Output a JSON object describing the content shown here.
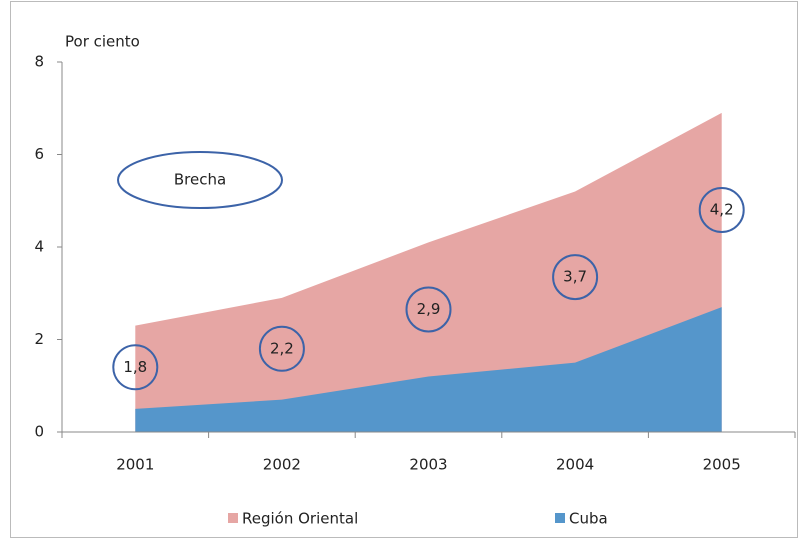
{
  "chart_data": {
    "type": "area",
    "y_label": "Por ciento",
    "categories": [
      "2001",
      "2002",
      "2003",
      "2004",
      "2005"
    ],
    "series": [
      {
        "name": "Región Oriental",
        "color": "#e6a6a4",
        "values": [
          2.3,
          2.9,
          4.1,
          5.2,
          6.9
        ]
      },
      {
        "name": "Cuba",
        "color": "#5596cb",
        "values": [
          0.5,
          0.7,
          1.2,
          1.5,
          2.7
        ]
      }
    ],
    "annotation": {
      "text": "Brecha",
      "color": "#3c63a8",
      "values": [
        1.8,
        2.2,
        2.9,
        3.7,
        4.2
      ],
      "value_labels": [
        "1,8",
        "2,2",
        "2,9",
        "3,7",
        "4,2"
      ]
    },
    "ylim": [
      0,
      8
    ],
    "yticks": [
      0,
      2,
      4,
      6,
      8
    ],
    "stacked": false,
    "legend": "bottom"
  }
}
